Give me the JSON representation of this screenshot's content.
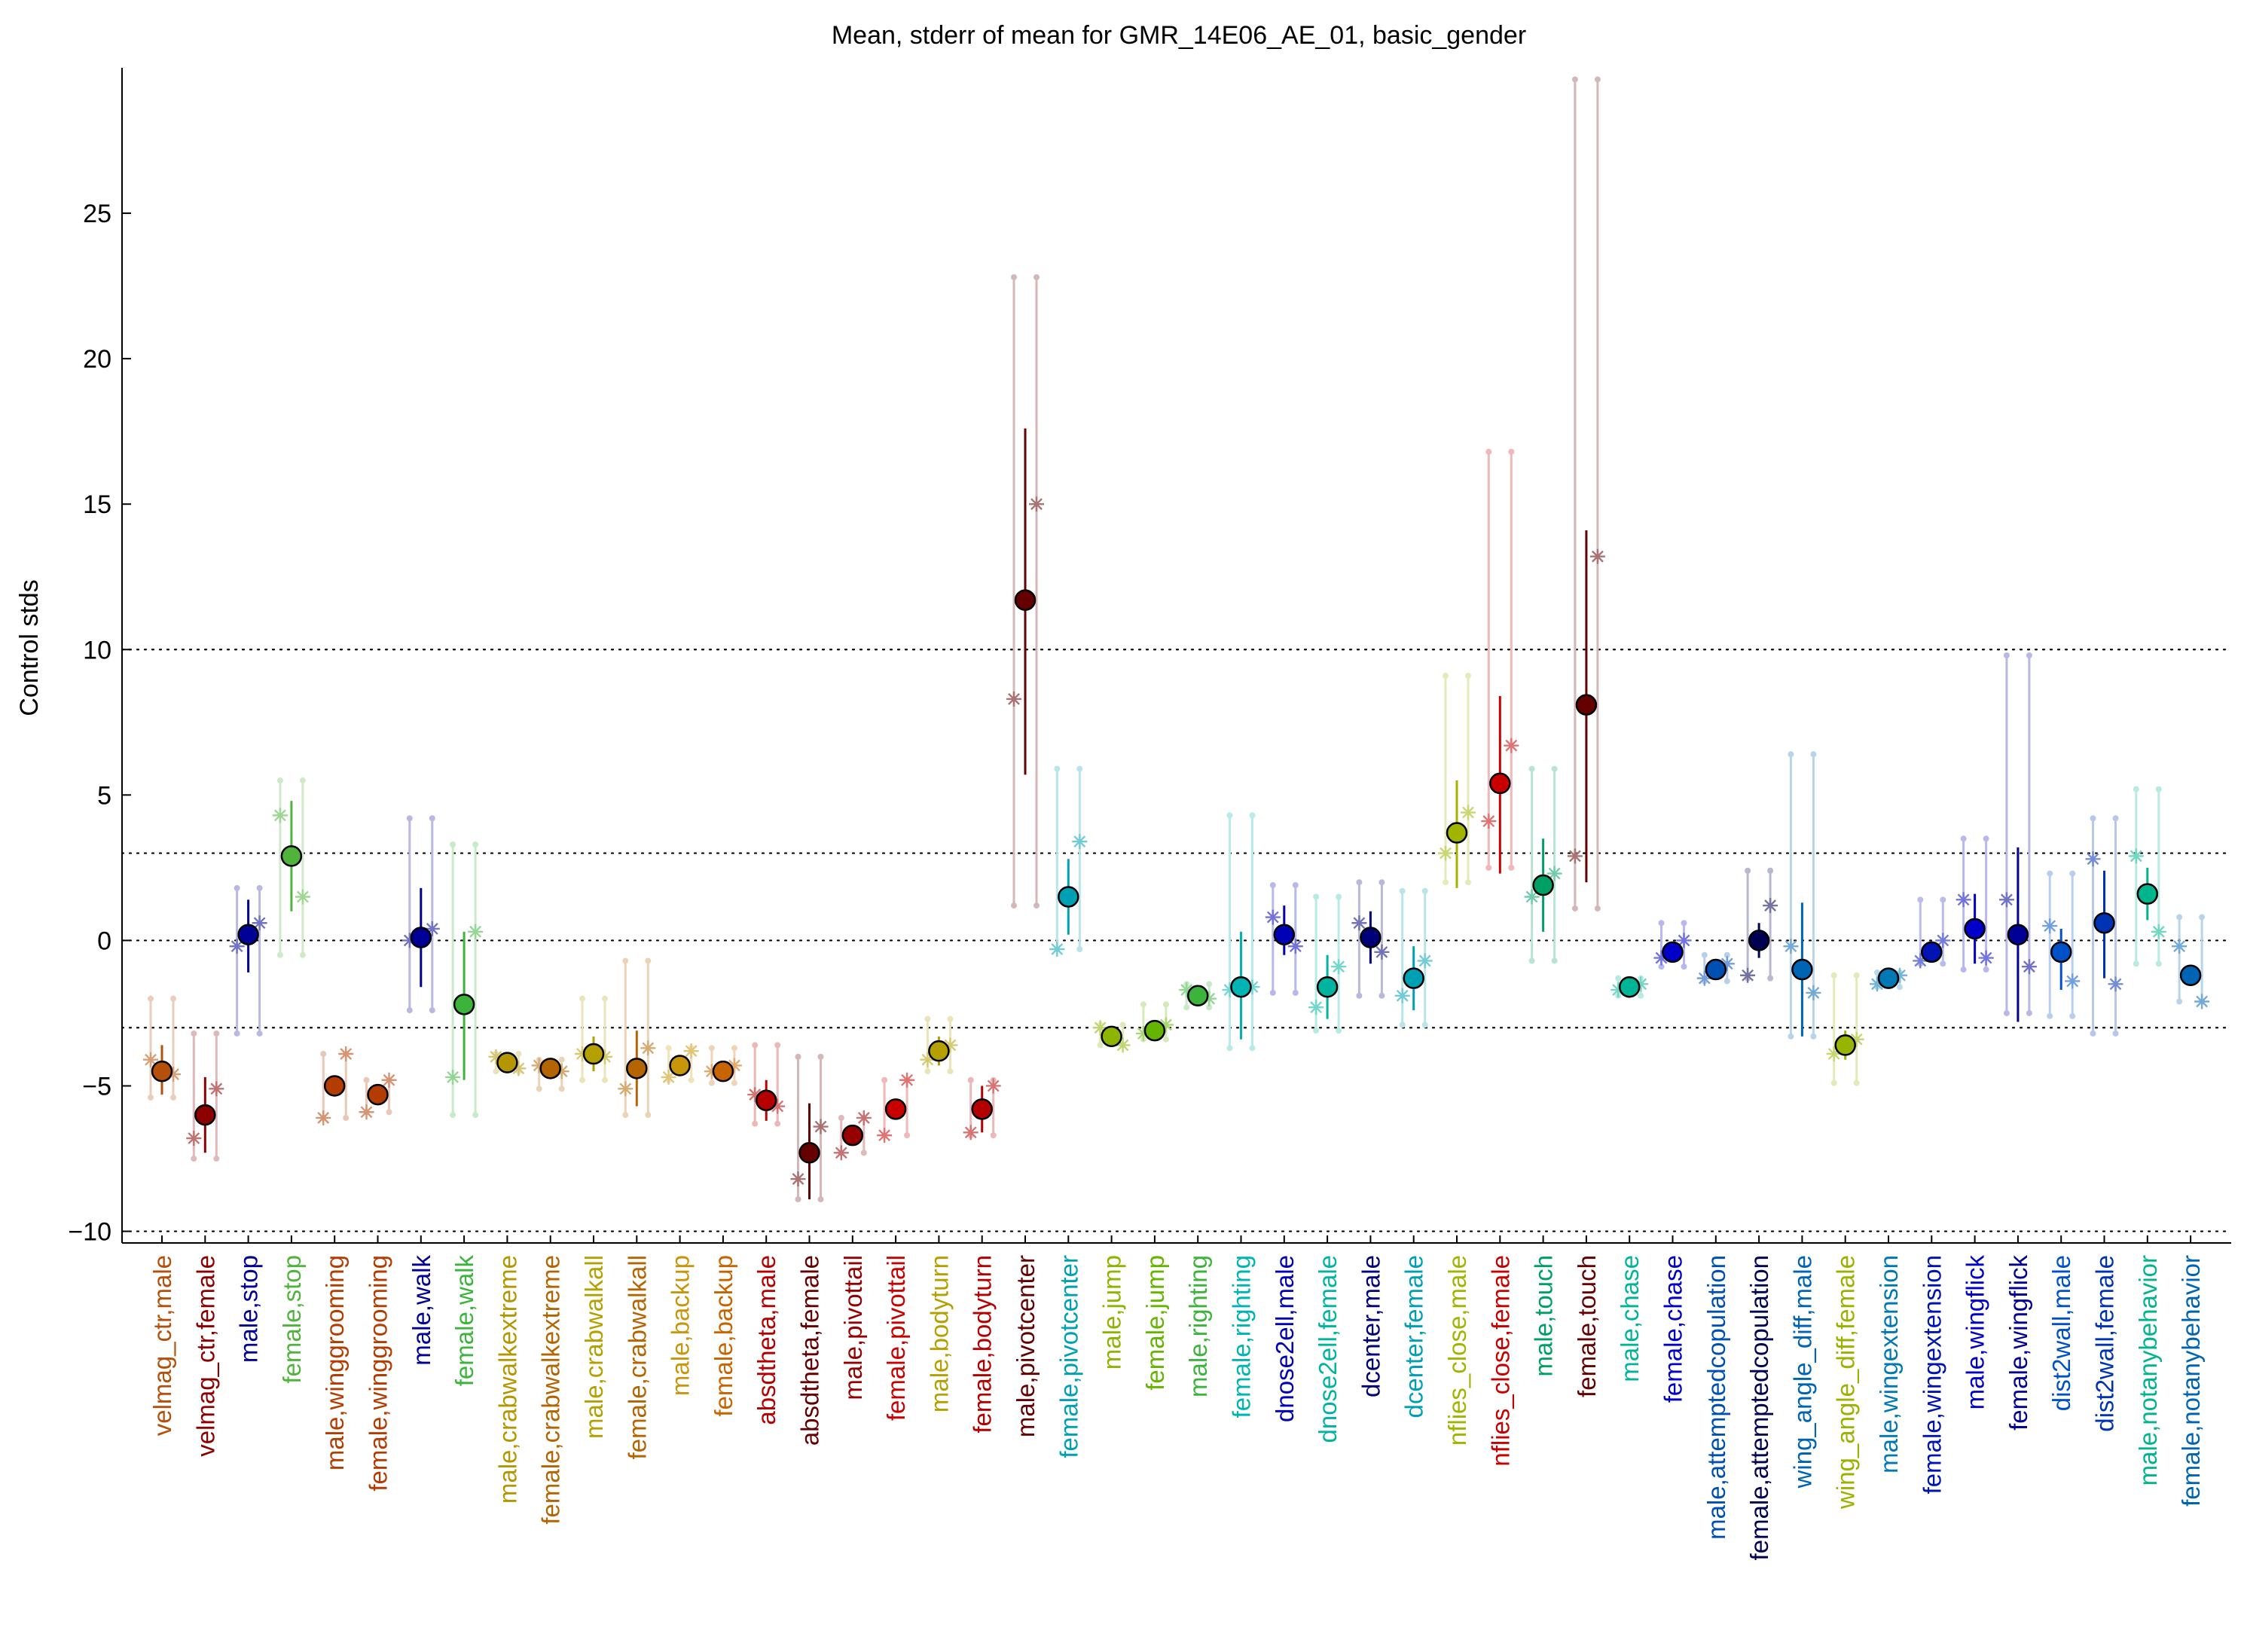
{
  "chart_data": {
    "type": "scatter",
    "title": "Mean, stderr of mean for GMR_14E06_AE_01, basic_gender",
    "xlabel": "",
    "ylabel": "Control stds",
    "ylim": [
      -10.4,
      30
    ],
    "yticks": [
      -10,
      -5,
      0,
      5,
      10,
      15,
      20,
      25
    ],
    "reference_lines": [
      -10,
      -3,
      0,
      3,
      10
    ],
    "grid": false,
    "legend": "none",
    "categories": [
      {
        "label": "velmag_ctr,male",
        "color": "#b4500a",
        "mean": -4.5,
        "err_lo": -5.3,
        "err_hi": -3.6,
        "ext_lo": -5.4,
        "ext_hi": -2.0,
        "stars": [
          -4.1,
          -4.6
        ]
      },
      {
        "label": "velmag_ctr,female",
        "color": "#8c0000",
        "mean": -6.0,
        "err_lo": -7.3,
        "err_hi": -4.7,
        "ext_lo": -7.5,
        "ext_hi": -3.2,
        "stars": [
          -6.8,
          -5.1
        ]
      },
      {
        "label": "male,stop",
        "color": "#000096",
        "mean": 0.2,
        "err_lo": -1.1,
        "err_hi": 1.4,
        "ext_lo": -3.2,
        "ext_hi": 1.8,
        "stars": [
          -0.2,
          0.6
        ]
      },
      {
        "label": "female,stop",
        "color": "#50b43c",
        "mean": 2.9,
        "err_lo": 1.0,
        "err_hi": 4.8,
        "ext_lo": -0.5,
        "ext_hi": 5.5,
        "stars": [
          4.3,
          1.5
        ]
      },
      {
        "label": "male,winggrooming",
        "color": "#b43c00",
        "mean": -5.0,
        "err_lo": -5.1,
        "err_hi": -4.9,
        "ext_lo": -6.1,
        "ext_hi": -3.9,
        "stars": [
          -6.1,
          -3.9
        ]
      },
      {
        "label": "female,winggrooming",
        "color": "#b43c00",
        "mean": -5.3,
        "err_lo": -5.4,
        "err_hi": -5.2,
        "ext_lo": -5.9,
        "ext_hi": -4.8,
        "stars": [
          -5.9,
          -4.8
        ]
      },
      {
        "label": "male,walk",
        "color": "#000096",
        "mean": 0.1,
        "err_lo": -1.6,
        "err_hi": 1.8,
        "ext_lo": -2.4,
        "ext_hi": 4.2,
        "stars": [
          0.0,
          0.4
        ]
      },
      {
        "label": "female,walk",
        "color": "#3cb43c",
        "mean": -2.2,
        "err_lo": -4.8,
        "err_hi": 0.3,
        "ext_lo": -6.0,
        "ext_hi": 3.3,
        "stars": [
          -4.7,
          0.3
        ]
      },
      {
        "label": "male,crabwalkextreme",
        "color": "#b49600",
        "mean": -4.2,
        "err_lo": -4.3,
        "err_hi": -4.1,
        "ext_lo": -4.5,
        "ext_hi": -3.9,
        "stars": [
          -4.0,
          -4.4
        ]
      },
      {
        "label": "female,crabwalkextreme",
        "color": "#b46400",
        "mean": -4.4,
        "err_lo": -4.5,
        "err_hi": -4.3,
        "ext_lo": -5.1,
        "ext_hi": -4.1,
        "stars": [
          -4.3,
          -4.5
        ]
      },
      {
        "label": "male,crabwalkall",
        "color": "#b4a000",
        "mean": -3.9,
        "err_lo": -4.5,
        "err_hi": -3.3,
        "ext_lo": -4.8,
        "ext_hi": -2.0,
        "stars": [
          -3.9,
          -4.0
        ]
      },
      {
        "label": "female,crabwalkall",
        "color": "#b46400",
        "mean": -4.4,
        "err_lo": -5.7,
        "err_hi": -3.1,
        "ext_lo": -6.0,
        "ext_hi": -0.7,
        "stars": [
          -5.1,
          -3.7
        ]
      },
      {
        "label": "male,backup",
        "color": "#c8960a",
        "mean": -4.3,
        "err_lo": -4.4,
        "err_hi": -4.2,
        "ext_lo": -4.8,
        "ext_hi": -3.7,
        "stars": [
          -4.7,
          -3.8
        ]
      },
      {
        "label": "female,backup",
        "color": "#c86400",
        "mean": -4.5,
        "err_lo": -4.6,
        "err_hi": -4.4,
        "ext_lo": -4.9,
        "ext_hi": -3.7,
        "stars": [
          -4.5,
          -4.3
        ]
      },
      {
        "label": "absdtheta,male",
        "color": "#b40000",
        "mean": -5.5,
        "err_lo": -6.2,
        "err_hi": -4.8,
        "ext_lo": -6.3,
        "ext_hi": -3.6,
        "stars": [
          -5.3,
          -5.7
        ]
      },
      {
        "label": "absdtheta,female",
        "color": "#640000",
        "mean": -7.3,
        "err_lo": -8.9,
        "err_hi": -5.6,
        "ext_lo": -8.9,
        "ext_hi": -4.0,
        "stars": [
          -8.2,
          -6.4
        ]
      },
      {
        "label": "male,pivottail",
        "color": "#960000",
        "mean": -6.7,
        "err_lo": -6.8,
        "err_hi": -6.6,
        "ext_lo": -7.3,
        "ext_hi": -6.1,
        "stars": [
          -7.3,
          -6.1
        ]
      },
      {
        "label": "female,pivottail",
        "color": "#c80000",
        "mean": -5.8,
        "err_lo": -5.9,
        "err_hi": -5.7,
        "ext_lo": -6.7,
        "ext_hi": -4.8,
        "stars": [
          -6.7,
          -4.8
        ]
      },
      {
        "label": "male,bodyturn",
        "color": "#b4a000",
        "mean": -3.8,
        "err_lo": -4.3,
        "err_hi": -3.3,
        "ext_lo": -4.5,
        "ext_hi": -2.7,
        "stars": [
          -4.1,
          -3.6
        ]
      },
      {
        "label": "female,bodyturn",
        "color": "#b40000",
        "mean": -5.8,
        "err_lo": -6.6,
        "err_hi": -5.0,
        "ext_lo": -6.7,
        "ext_hi": -4.8,
        "stars": [
          -6.6,
          -5.0
        ]
      },
      {
        "label": "male,pivotcenter",
        "color": "#640000",
        "mean": 11.7,
        "err_lo": 5.7,
        "err_hi": 17.6,
        "ext_lo": 1.2,
        "ext_hi": 22.8,
        "stars": [
          8.3,
          15.0
        ]
      },
      {
        "label": "female,pivotcenter",
        "color": "#00a0b4",
        "mean": 1.5,
        "err_lo": 0.2,
        "err_hi": 2.8,
        "ext_lo": -0.3,
        "ext_hi": 5.9,
        "stars": [
          -0.3,
          3.4
        ]
      },
      {
        "label": "male,jump",
        "color": "#8cb400",
        "mean": -3.3,
        "err_lo": -3.4,
        "err_hi": -3.2,
        "ext_lo": -3.6,
        "ext_hi": -2.9,
        "stars": [
          -3.0,
          -3.6
        ]
      },
      {
        "label": "female,jump",
        "color": "#64b400",
        "mean": -3.1,
        "err_lo": -3.2,
        "err_hi": -3.0,
        "ext_lo": -3.4,
        "ext_hi": -2.2,
        "stars": [
          -3.2,
          -2.9
        ]
      },
      {
        "label": "male,righting",
        "color": "#3cb43c",
        "mean": -1.9,
        "err_lo": -2.0,
        "err_hi": -1.8,
        "ext_lo": -2.3,
        "ext_hi": -1.5,
        "stars": [
          -1.7,
          -2.0
        ]
      },
      {
        "label": "female,righting",
        "color": "#00b4b4",
        "mean": -1.6,
        "err_lo": -3.4,
        "err_hi": 0.3,
        "ext_lo": -3.7,
        "ext_hi": 4.3,
        "stars": [
          -1.7,
          -1.6
        ]
      },
      {
        "label": "dnose2ell,male",
        "color": "#0000b4",
        "mean": 0.2,
        "err_lo": -0.5,
        "err_hi": 1.2,
        "ext_lo": -1.8,
        "ext_hi": 1.9,
        "stars": [
          0.8,
          -0.2
        ]
      },
      {
        "label": "dnose2ell,female",
        "color": "#00b4a0",
        "mean": -1.6,
        "err_lo": -2.7,
        "err_hi": -0.5,
        "ext_lo": -3.1,
        "ext_hi": 1.5,
        "stars": [
          -2.3,
          -0.9
        ]
      },
      {
        "label": "dcenter,male",
        "color": "#000078",
        "mean": 0.1,
        "err_lo": -0.8,
        "err_hi": 1.0,
        "ext_lo": -1.9,
        "ext_hi": 2.0,
        "stars": [
          0.6,
          -0.4
        ]
      },
      {
        "label": "dcenter,female",
        "color": "#00a0b4",
        "mean": -1.3,
        "err_lo": -2.4,
        "err_hi": -0.2,
        "ext_lo": -2.9,
        "ext_hi": 1.7,
        "stars": [
          -1.9,
          -0.7
        ]
      },
      {
        "label": "nflies_close,male",
        "color": "#a0b400",
        "mean": 3.7,
        "err_lo": 1.8,
        "err_hi": 5.5,
        "ext_lo": 2.0,
        "ext_hi": 9.1,
        "stars": [
          3.0,
          4.4
        ]
      },
      {
        "label": "nflies_close,female",
        "color": "#c80000",
        "mean": 5.4,
        "err_lo": 2.3,
        "err_hi": 8.4,
        "ext_lo": 2.5,
        "ext_hi": 16.8,
        "stars": [
          4.1,
          6.7
        ]
      },
      {
        "label": "male,touch",
        "color": "#00a064",
        "mean": 1.9,
        "err_lo": 0.3,
        "err_hi": 3.5,
        "ext_lo": -0.7,
        "ext_hi": 5.9,
        "stars": [
          1.5,
          2.3
        ]
      },
      {
        "label": "female,touch",
        "color": "#640000",
        "mean": 8.1,
        "err_lo": 2.0,
        "err_hi": 14.1,
        "ext_lo": 1.1,
        "ext_hi": 29.6,
        "stars": [
          2.9,
          13.2
        ]
      },
      {
        "label": "male,chase",
        "color": "#00b496",
        "mean": -1.6,
        "err_lo": -1.7,
        "err_hi": -1.5,
        "ext_lo": -1.9,
        "ext_hi": -1.3,
        "stars": [
          -1.7,
          -1.5
        ]
      },
      {
        "label": "female,chase",
        "color": "#0000c8",
        "mean": -0.4,
        "err_lo": -0.5,
        "err_hi": -0.3,
        "ext_lo": -0.9,
        "ext_hi": 0.6,
        "stars": [
          -0.6,
          0.0
        ]
      },
      {
        "label": "male,attemptedcopulation",
        "color": "#0050b4",
        "mean": -1.0,
        "err_lo": -1.1,
        "err_hi": -0.9,
        "ext_lo": -1.4,
        "ext_hi": -0.5,
        "stars": [
          -1.3,
          -0.8
        ]
      },
      {
        "label": "female,attemptedcopulation",
        "color": "#000050",
        "mean": 0.0,
        "err_lo": -0.6,
        "err_hi": 0.6,
        "ext_lo": -1.3,
        "ext_hi": 2.4,
        "stars": [
          -1.2,
          1.2
        ]
      },
      {
        "label": "wing_angle_diff,male",
        "color": "#0064b4",
        "mean": -1.0,
        "err_lo": -3.3,
        "err_hi": 1.3,
        "ext_lo": -3.3,
        "ext_hi": 6.4,
        "stars": [
          -0.2,
          -1.8
        ]
      },
      {
        "label": "wing_angle_diff,female",
        "color": "#96b400",
        "mean": -3.6,
        "err_lo": -4.1,
        "err_hi": -3.1,
        "ext_lo": -4.9,
        "ext_hi": -1.2,
        "stars": [
          -3.9,
          -3.4
        ]
      },
      {
        "label": "male,wingextension",
        "color": "#0078b4",
        "mean": -1.3,
        "err_lo": -1.4,
        "err_hi": -1.2,
        "ext_lo": -1.6,
        "ext_hi": -1.1,
        "stars": [
          -1.5,
          -1.2
        ]
      },
      {
        "label": "female,wingextension",
        "color": "#0014b4",
        "mean": -0.4,
        "err_lo": -0.5,
        "err_hi": -0.3,
        "ext_lo": -0.8,
        "ext_hi": 1.4,
        "stars": [
          -0.7,
          0.0
        ]
      },
      {
        "label": "male,wingflick",
        "color": "#0000c8",
        "mean": 0.4,
        "err_lo": -0.8,
        "err_hi": 1.6,
        "ext_lo": -1.0,
        "ext_hi": 3.5,
        "stars": [
          1.4,
          -0.6
        ]
      },
      {
        "label": "female,wingflick",
        "color": "#000096",
        "mean": 0.2,
        "err_lo": -2.8,
        "err_hi": 3.2,
        "ext_lo": -2.5,
        "ext_hi": 9.8,
        "stars": [
          1.4,
          -0.9
        ]
      },
      {
        "label": "dist2wall,male",
        "color": "#0050c8",
        "mean": -0.4,
        "err_lo": -1.7,
        "err_hi": 0.4,
        "ext_lo": -2.6,
        "ext_hi": 2.3,
        "stars": [
          0.5,
          -1.4
        ]
      },
      {
        "label": "dist2wall,female",
        "color": "#0032b4",
        "mean": 0.6,
        "err_lo": -1.3,
        "err_hi": 2.4,
        "ext_lo": -3.2,
        "ext_hi": 4.2,
        "stars": [
          2.8,
          -1.5
        ]
      },
      {
        "label": "male,notanybehavior",
        "color": "#00b48c",
        "mean": 1.6,
        "err_lo": 0.7,
        "err_hi": 2.5,
        "ext_lo": -0.8,
        "ext_hi": 5.2,
        "stars": [
          2.9,
          0.3
        ]
      },
      {
        "label": "female,notanybehavior",
        "color": "#0064b4",
        "mean": -1.2,
        "err_lo": -1.3,
        "err_hi": -1.1,
        "ext_lo": -2.1,
        "ext_hi": 0.8,
        "stars": [
          -0.2,
          -2.1
        ]
      }
    ]
  }
}
